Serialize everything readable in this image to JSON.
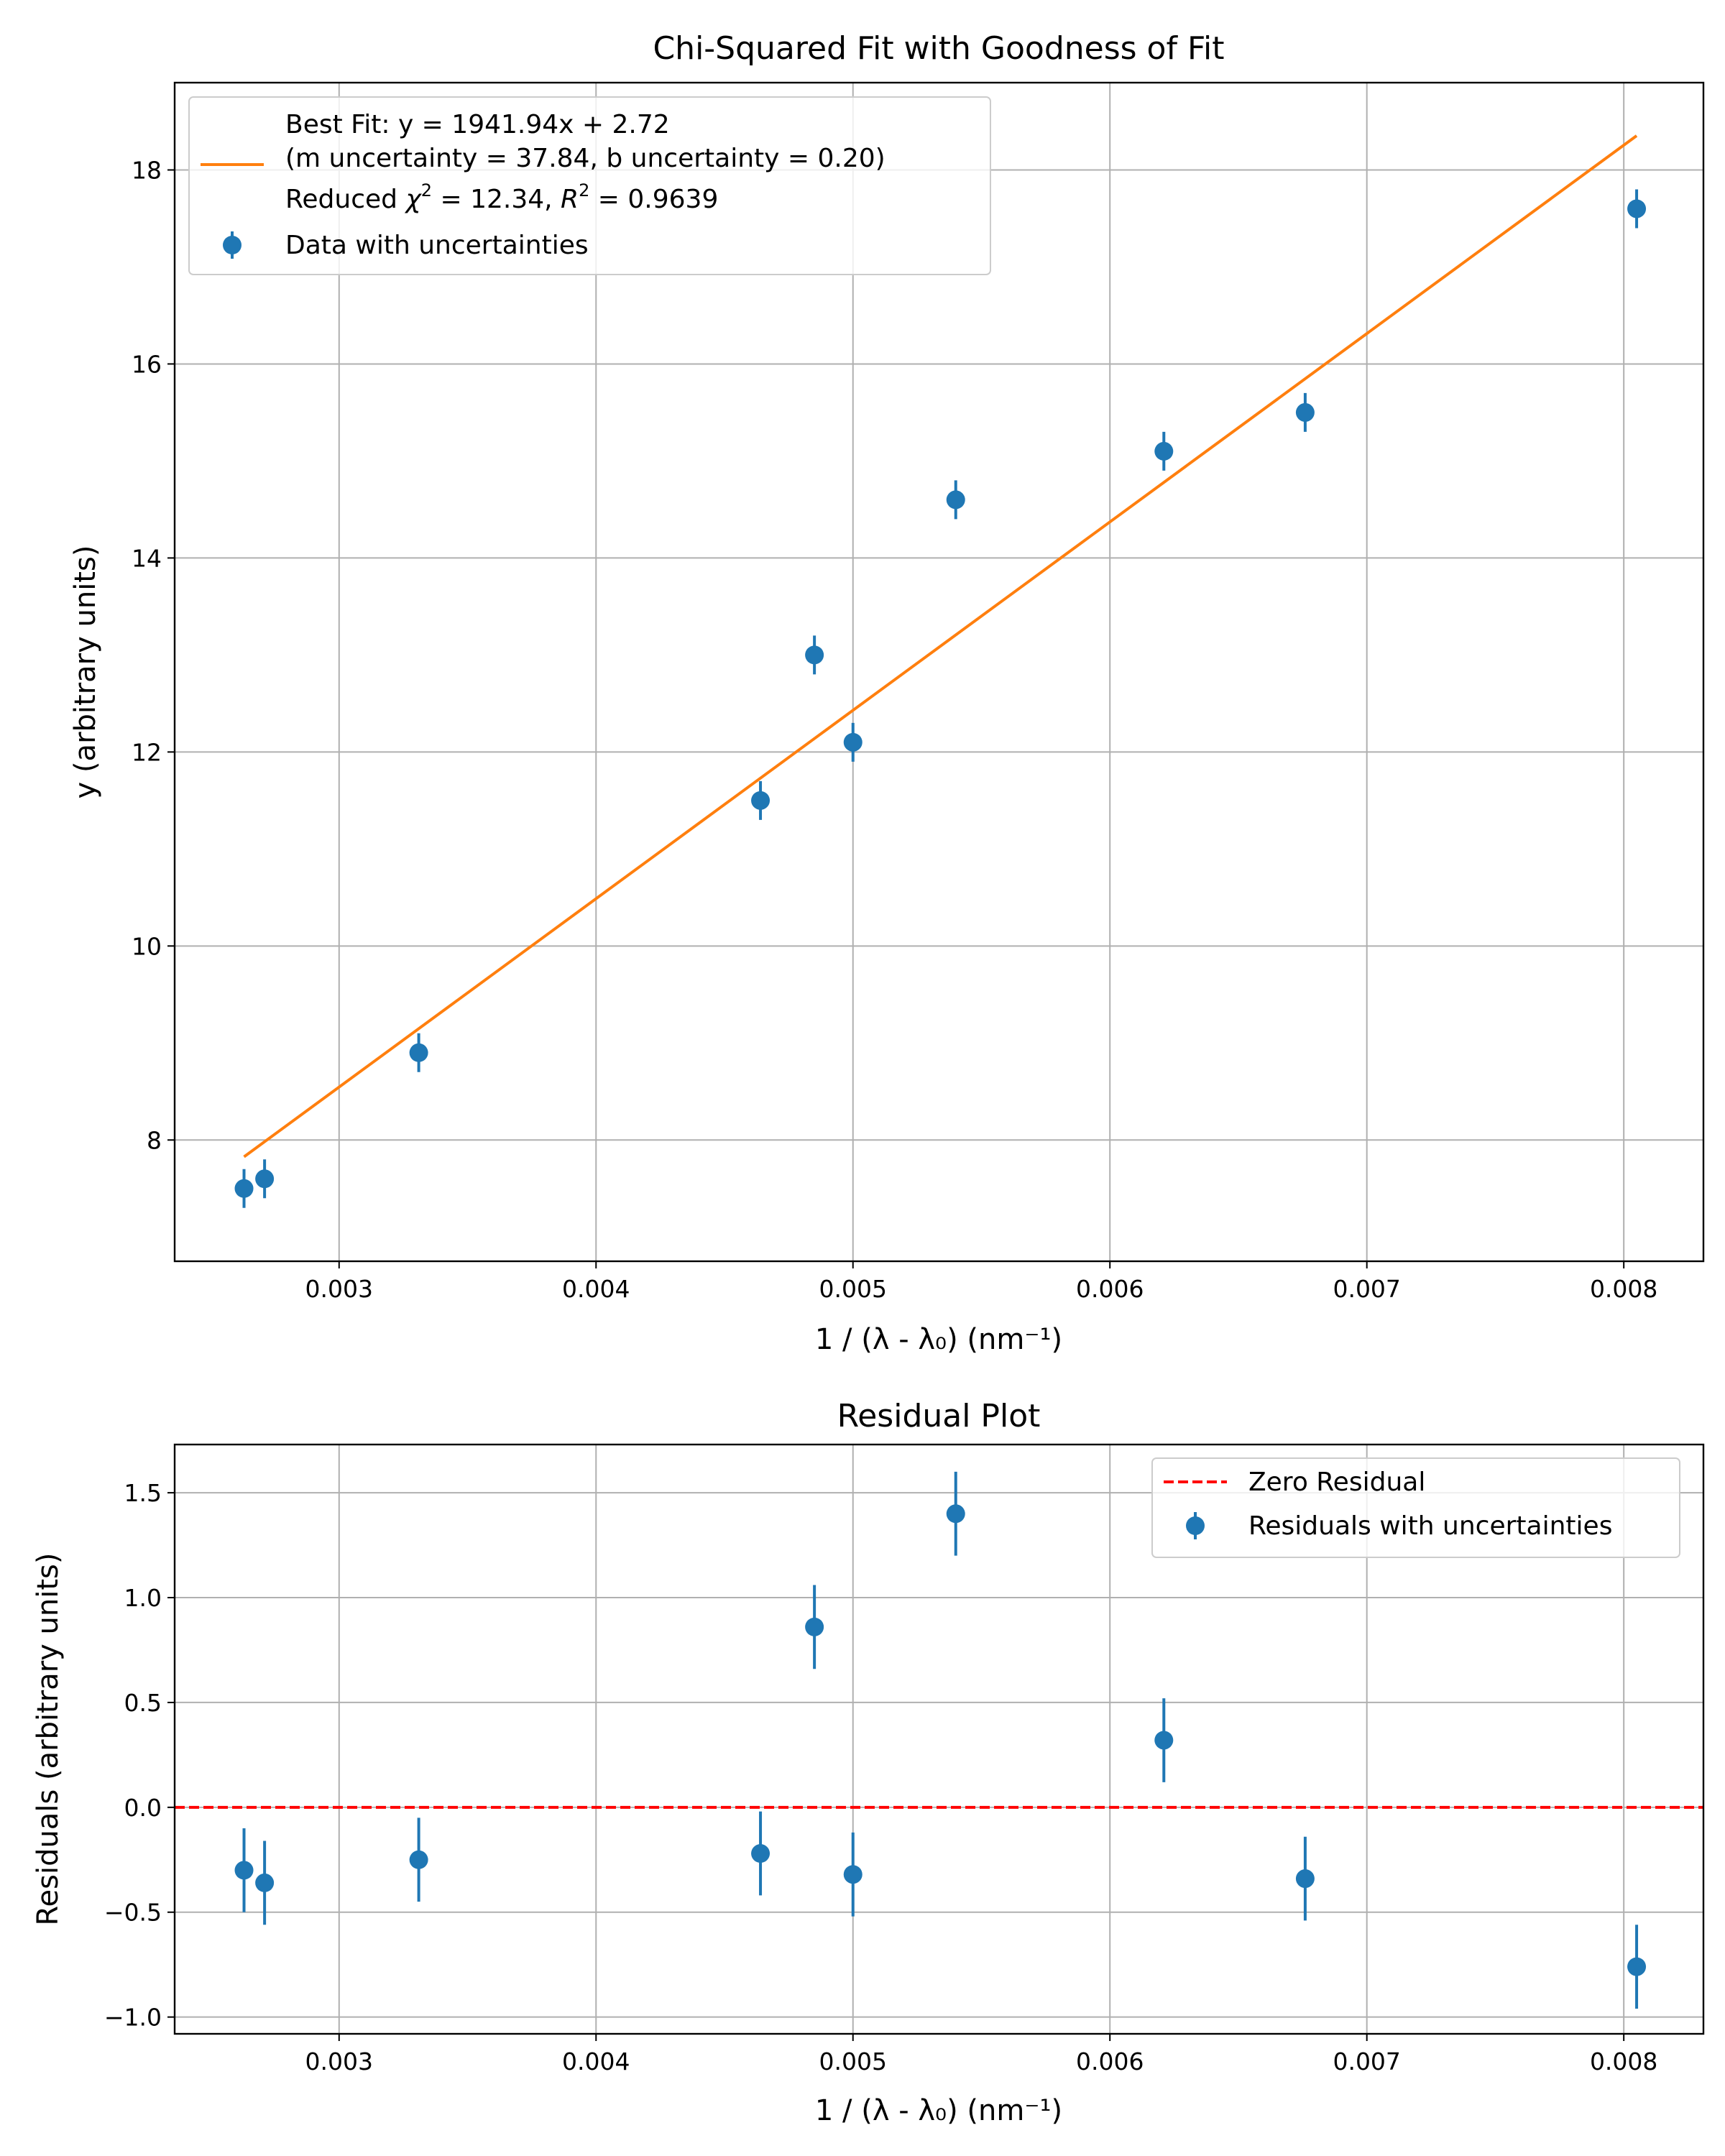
{
  "colors": {
    "data": "#1f77b4",
    "fit": "#ff7f0e",
    "zero": "#ff0000",
    "grid": "#b0b0b0",
    "axes": "#000000",
    "legend_border": "#cccccc"
  },
  "chart_data": [
    {
      "type": "scatter",
      "title": "Chi-Squared Fit with Goodness of Fit",
      "xlabel": "1 / (λ - λ₀) (nm⁻¹)",
      "ylabel": "y (arbitrary units)",
      "xlim": [
        0.00236,
        0.00831
      ],
      "ylim": [
        6.75,
        18.9
      ],
      "grid": true,
      "legend_position": "upper-left",
      "x_ticks": [
        0.003,
        0.004,
        0.005,
        0.006,
        0.007,
        0.008
      ],
      "x_tick_labels": [
        "0.003",
        "0.004",
        "0.005",
        "0.006",
        "0.007",
        "0.008"
      ],
      "y_ticks": [
        8,
        10,
        12,
        14,
        16,
        18
      ],
      "y_tick_labels": [
        "8",
        "10",
        "12",
        "14",
        "16",
        "18"
      ],
      "legend": {
        "fit_line1": "Best Fit: y = 1941.94x + 2.72",
        "fit_line2": "(m uncertainty = 37.84, b uncertainty = 0.20)",
        "fit_line3_pre": "Reduced ",
        "fit_line3_chi": "χ",
        "fit_line3_sup1": "2",
        "fit_line3_mid": " = 12.34, ",
        "fit_line3_r": "R",
        "fit_line3_sup2": "2",
        "fit_line3_post": " = 0.9639",
        "data_label": "Data with uncertainties"
      },
      "fit": {
        "slope": 1941.94,
        "intercept": 2.72,
        "x_range": [
          0.00263,
          0.00805
        ]
      },
      "series": [
        {
          "name": "Data with uncertainties",
          "x": [
            0.00263,
            0.00271,
            0.00331,
            0.00464,
            0.00485,
            0.005,
            0.0054,
            0.00621,
            0.00676,
            0.00805
          ],
          "y": [
            7.5,
            7.6,
            8.9,
            11.5,
            13.0,
            12.1,
            14.6,
            15.1,
            15.5,
            17.6
          ],
          "yerr": [
            0.2,
            0.2,
            0.2,
            0.2,
            0.2,
            0.2,
            0.2,
            0.2,
            0.2,
            0.2
          ]
        }
      ]
    },
    {
      "type": "scatter",
      "title": "Residual Plot",
      "xlabel": "1 / (λ - λ₀) (nm⁻¹)",
      "ylabel": "Residuals (arbitrary units)",
      "xlim": [
        0.00236,
        0.00831
      ],
      "ylim": [
        -1.08,
        1.73
      ],
      "grid": true,
      "legend_position": "upper-right",
      "x_ticks": [
        0.003,
        0.004,
        0.005,
        0.006,
        0.007,
        0.008
      ],
      "x_tick_labels": [
        "0.003",
        "0.004",
        "0.005",
        "0.006",
        "0.007",
        "0.008"
      ],
      "y_ticks": [
        -1.0,
        -0.5,
        0.0,
        0.5,
        1.0,
        1.5
      ],
      "y_tick_labels": [
        "−1.0",
        "−0.5",
        "0.0",
        "0.5",
        "1.0",
        "1.5"
      ],
      "zero_line": 0,
      "legend": {
        "zero_label": "Zero Residual",
        "data_label": "Residuals with uncertainties"
      },
      "series": [
        {
          "name": "Residuals with uncertainties",
          "x": [
            0.00263,
            0.00271,
            0.00331,
            0.00464,
            0.00485,
            0.005,
            0.0054,
            0.00621,
            0.00676,
            0.00805
          ],
          "y": [
            -0.3,
            -0.36,
            -0.25,
            -0.22,
            0.86,
            -0.32,
            1.4,
            0.32,
            -0.34,
            -0.76
          ],
          "yerr": [
            0.2,
            0.2,
            0.2,
            0.2,
            0.2,
            0.2,
            0.2,
            0.2,
            0.2,
            0.2
          ]
        }
      ]
    }
  ]
}
